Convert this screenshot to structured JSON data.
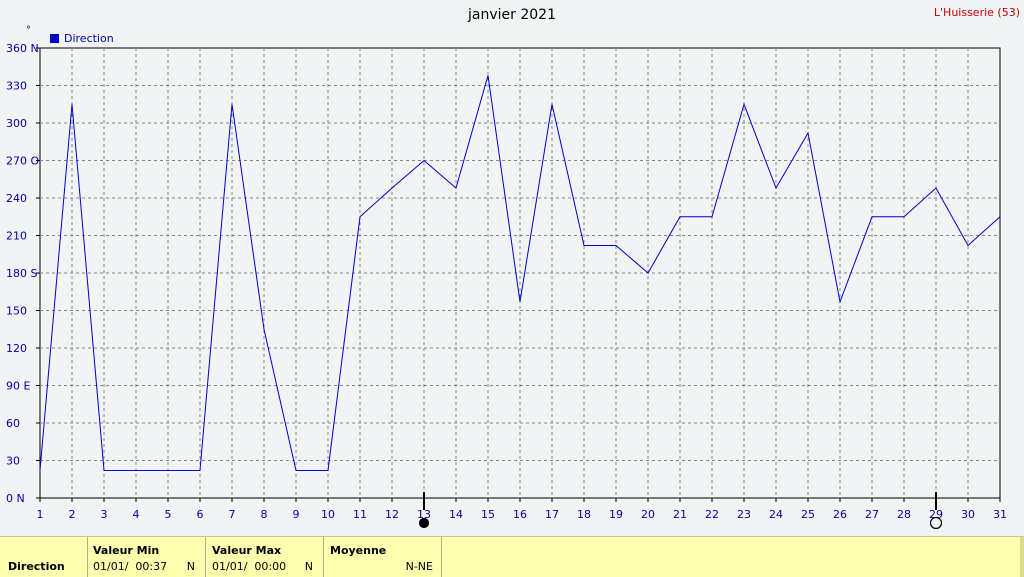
{
  "header": {
    "title": "janvier 2021",
    "station": "L'Huisserie (53)",
    "unit": "°"
  },
  "legend": {
    "label": "Direction",
    "color": "#0000cc"
  },
  "colors": {
    "line": "#0000cc",
    "axis_text": "#0000aa",
    "grid": "#888888",
    "title": "#000000",
    "station": "#cc0000",
    "footer_bg": "#ffffb0"
  },
  "chart_data": {
    "type": "line",
    "x": [
      1,
      2,
      3,
      4,
      5,
      6,
      7,
      8,
      9,
      10,
      11,
      12,
      13,
      14,
      15,
      16,
      17,
      18,
      19,
      20,
      21,
      22,
      23,
      24,
      25,
      26,
      27,
      28,
      29,
      30,
      31
    ],
    "xlim": [
      1,
      31
    ],
    "ylim": [
      0,
      360
    ],
    "y_ticks": [
      0,
      30,
      60,
      90,
      120,
      150,
      180,
      210,
      240,
      270,
      300,
      330,
      360
    ],
    "y_tick_labels": [
      "0  N",
      "30",
      "60",
      "90  E",
      "120",
      "150",
      "180 S",
      "210",
      "240",
      "270 O",
      "300",
      "330",
      "360 N"
    ],
    "x_tick_labels": [
      "1",
      "2",
      "3",
      "4",
      "5",
      "6",
      "7",
      "8",
      "9",
      "10",
      "11",
      "12",
      "13",
      "14",
      "15",
      "16",
      "17",
      "18",
      "19",
      "20",
      "21",
      "22",
      "23",
      "24",
      "25",
      "26",
      "27",
      "28",
      "29",
      "30",
      "31"
    ],
    "grid": true,
    "series": [
      {
        "name": "Direction",
        "values": [
          22,
          315,
          22,
          22,
          22,
          22,
          315,
          135,
          22,
          22,
          225,
          248,
          270,
          248,
          338,
          157,
          315,
          202,
          202,
          180,
          225,
          225,
          315,
          248,
          292,
          157,
          225,
          225,
          248,
          202,
          225
        ]
      }
    ],
    "moon_phases": [
      {
        "day": 13,
        "phase": "new-moon"
      },
      {
        "day": 29,
        "phase": "full-moon"
      }
    ]
  },
  "footer": {
    "row_label": "Direction",
    "min": {
      "header": "Valeur Min",
      "date": "01/01/",
      "time": "00:37",
      "dir": "N"
    },
    "max": {
      "header": "Valeur Max",
      "date": "01/01/",
      "time": "00:00",
      "dir": "N"
    },
    "mean": {
      "header": "Moyenne",
      "value": "N-NE"
    }
  }
}
